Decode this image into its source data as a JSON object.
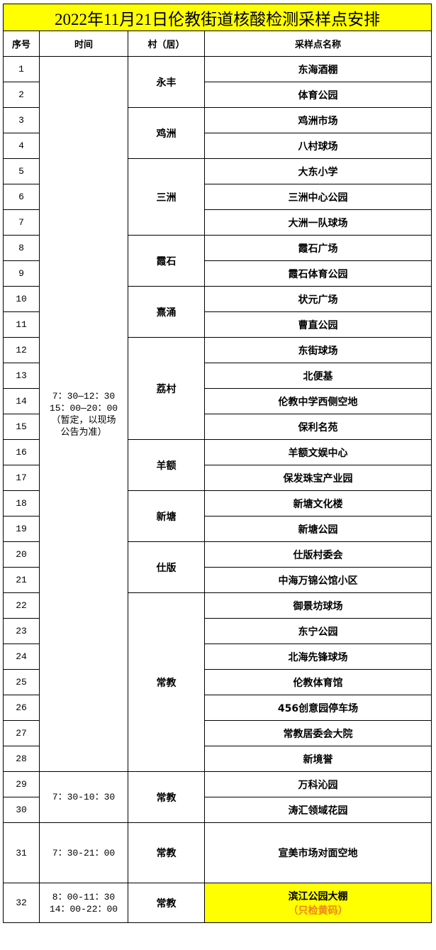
{
  "title": "2022年11月21日伦教街道核酸检测采样点安排",
  "headers": [
    "序号",
    "时间",
    "村（居）",
    "采样点名称"
  ],
  "rows": [
    {
      "no": "1",
      "site": "东海酒棚"
    },
    {
      "no": "2",
      "site": "体育公园"
    },
    {
      "no": "3",
      "site": "鸡洲市场"
    },
    {
      "no": "4",
      "site": "八村球场"
    },
    {
      "no": "5",
      "site": "大东小学"
    },
    {
      "no": "6",
      "site": "三洲中心公园"
    },
    {
      "no": "7",
      "site": "大洲一队球场"
    },
    {
      "no": "8",
      "site": "霞石广场"
    },
    {
      "no": "9",
      "site": "霞石体育公园"
    },
    {
      "no": "10",
      "site": "状元广场"
    },
    {
      "no": "11",
      "site": "曹直公园"
    },
    {
      "no": "12",
      "site": "东街球场"
    },
    {
      "no": "13",
      "site": "北便基"
    },
    {
      "no": "14",
      "site": "伦教中学西侧空地"
    },
    {
      "no": "15",
      "site": "保利名苑"
    },
    {
      "no": "16",
      "site": "羊额文娱中心"
    },
    {
      "no": "17",
      "site": "保发珠宝产业园"
    },
    {
      "no": "18",
      "site": "新塘文化楼"
    },
    {
      "no": "19",
      "site": "新塘公园"
    },
    {
      "no": "20",
      "site": "仕版村委会"
    },
    {
      "no": "21",
      "site": "中海万锦公馆小区"
    },
    {
      "no": "22",
      "site": "御景坊球场"
    },
    {
      "no": "23",
      "site": "东宁公园"
    },
    {
      "no": "24",
      "site": "北海先锋球场"
    },
    {
      "no": "25",
      "site": "伦教体育馆"
    },
    {
      "no": "26",
      "site": "456创意园停车场"
    },
    {
      "no": "27",
      "site": "常教居委会大院"
    },
    {
      "no": "28",
      "site": "新境誉"
    },
    {
      "no": "29",
      "site": "万科沁园"
    },
    {
      "no": "30",
      "site": "涛汇领域花园"
    },
    {
      "no": "31",
      "site": "宣美市场对面空地"
    },
    {
      "no": "32",
      "site": "滨江公园大棚",
      "note": "（只检黄码）",
      "highlight": true
    }
  ],
  "time_groups": [
    {
      "start": 0,
      "span": 28,
      "lines": [
        "7：30—12：30",
        "15：00—20：00",
        "（暂定，以现场",
        "公告为准）"
      ]
    },
    {
      "start": 28,
      "span": 2,
      "lines": [
        "7：30-10：30"
      ]
    },
    {
      "start": 30,
      "span": 1,
      "lines": [
        "7：30-21：00"
      ]
    },
    {
      "start": 31,
      "span": 1,
      "lines": [
        "8：00-11：30",
        "14：00-22：00"
      ]
    }
  ],
  "village_groups": [
    {
      "start": 0,
      "span": 2,
      "name": "永丰"
    },
    {
      "start": 2,
      "span": 2,
      "name": "鸡洲"
    },
    {
      "start": 4,
      "span": 3,
      "name": "三洲"
    },
    {
      "start": 7,
      "span": 2,
      "name": "霞石"
    },
    {
      "start": 9,
      "span": 2,
      "name": "熹涌"
    },
    {
      "start": 11,
      "span": 4,
      "name": "荔村"
    },
    {
      "start": 15,
      "span": 2,
      "name": "羊额"
    },
    {
      "start": 17,
      "span": 2,
      "name": "新塘"
    },
    {
      "start": 19,
      "span": 2,
      "name": "仕版"
    },
    {
      "start": 21,
      "span": 7,
      "name": "常教"
    },
    {
      "start": 28,
      "span": 2,
      "name": "常教"
    },
    {
      "start": 30,
      "span": 1,
      "name": "常教"
    },
    {
      "start": 31,
      "span": 1,
      "name": "常教"
    }
  ],
  "colors": {
    "title_bg": "#ffff00",
    "highlight_bg": "#ffff00",
    "note_text": "#f08020"
  }
}
